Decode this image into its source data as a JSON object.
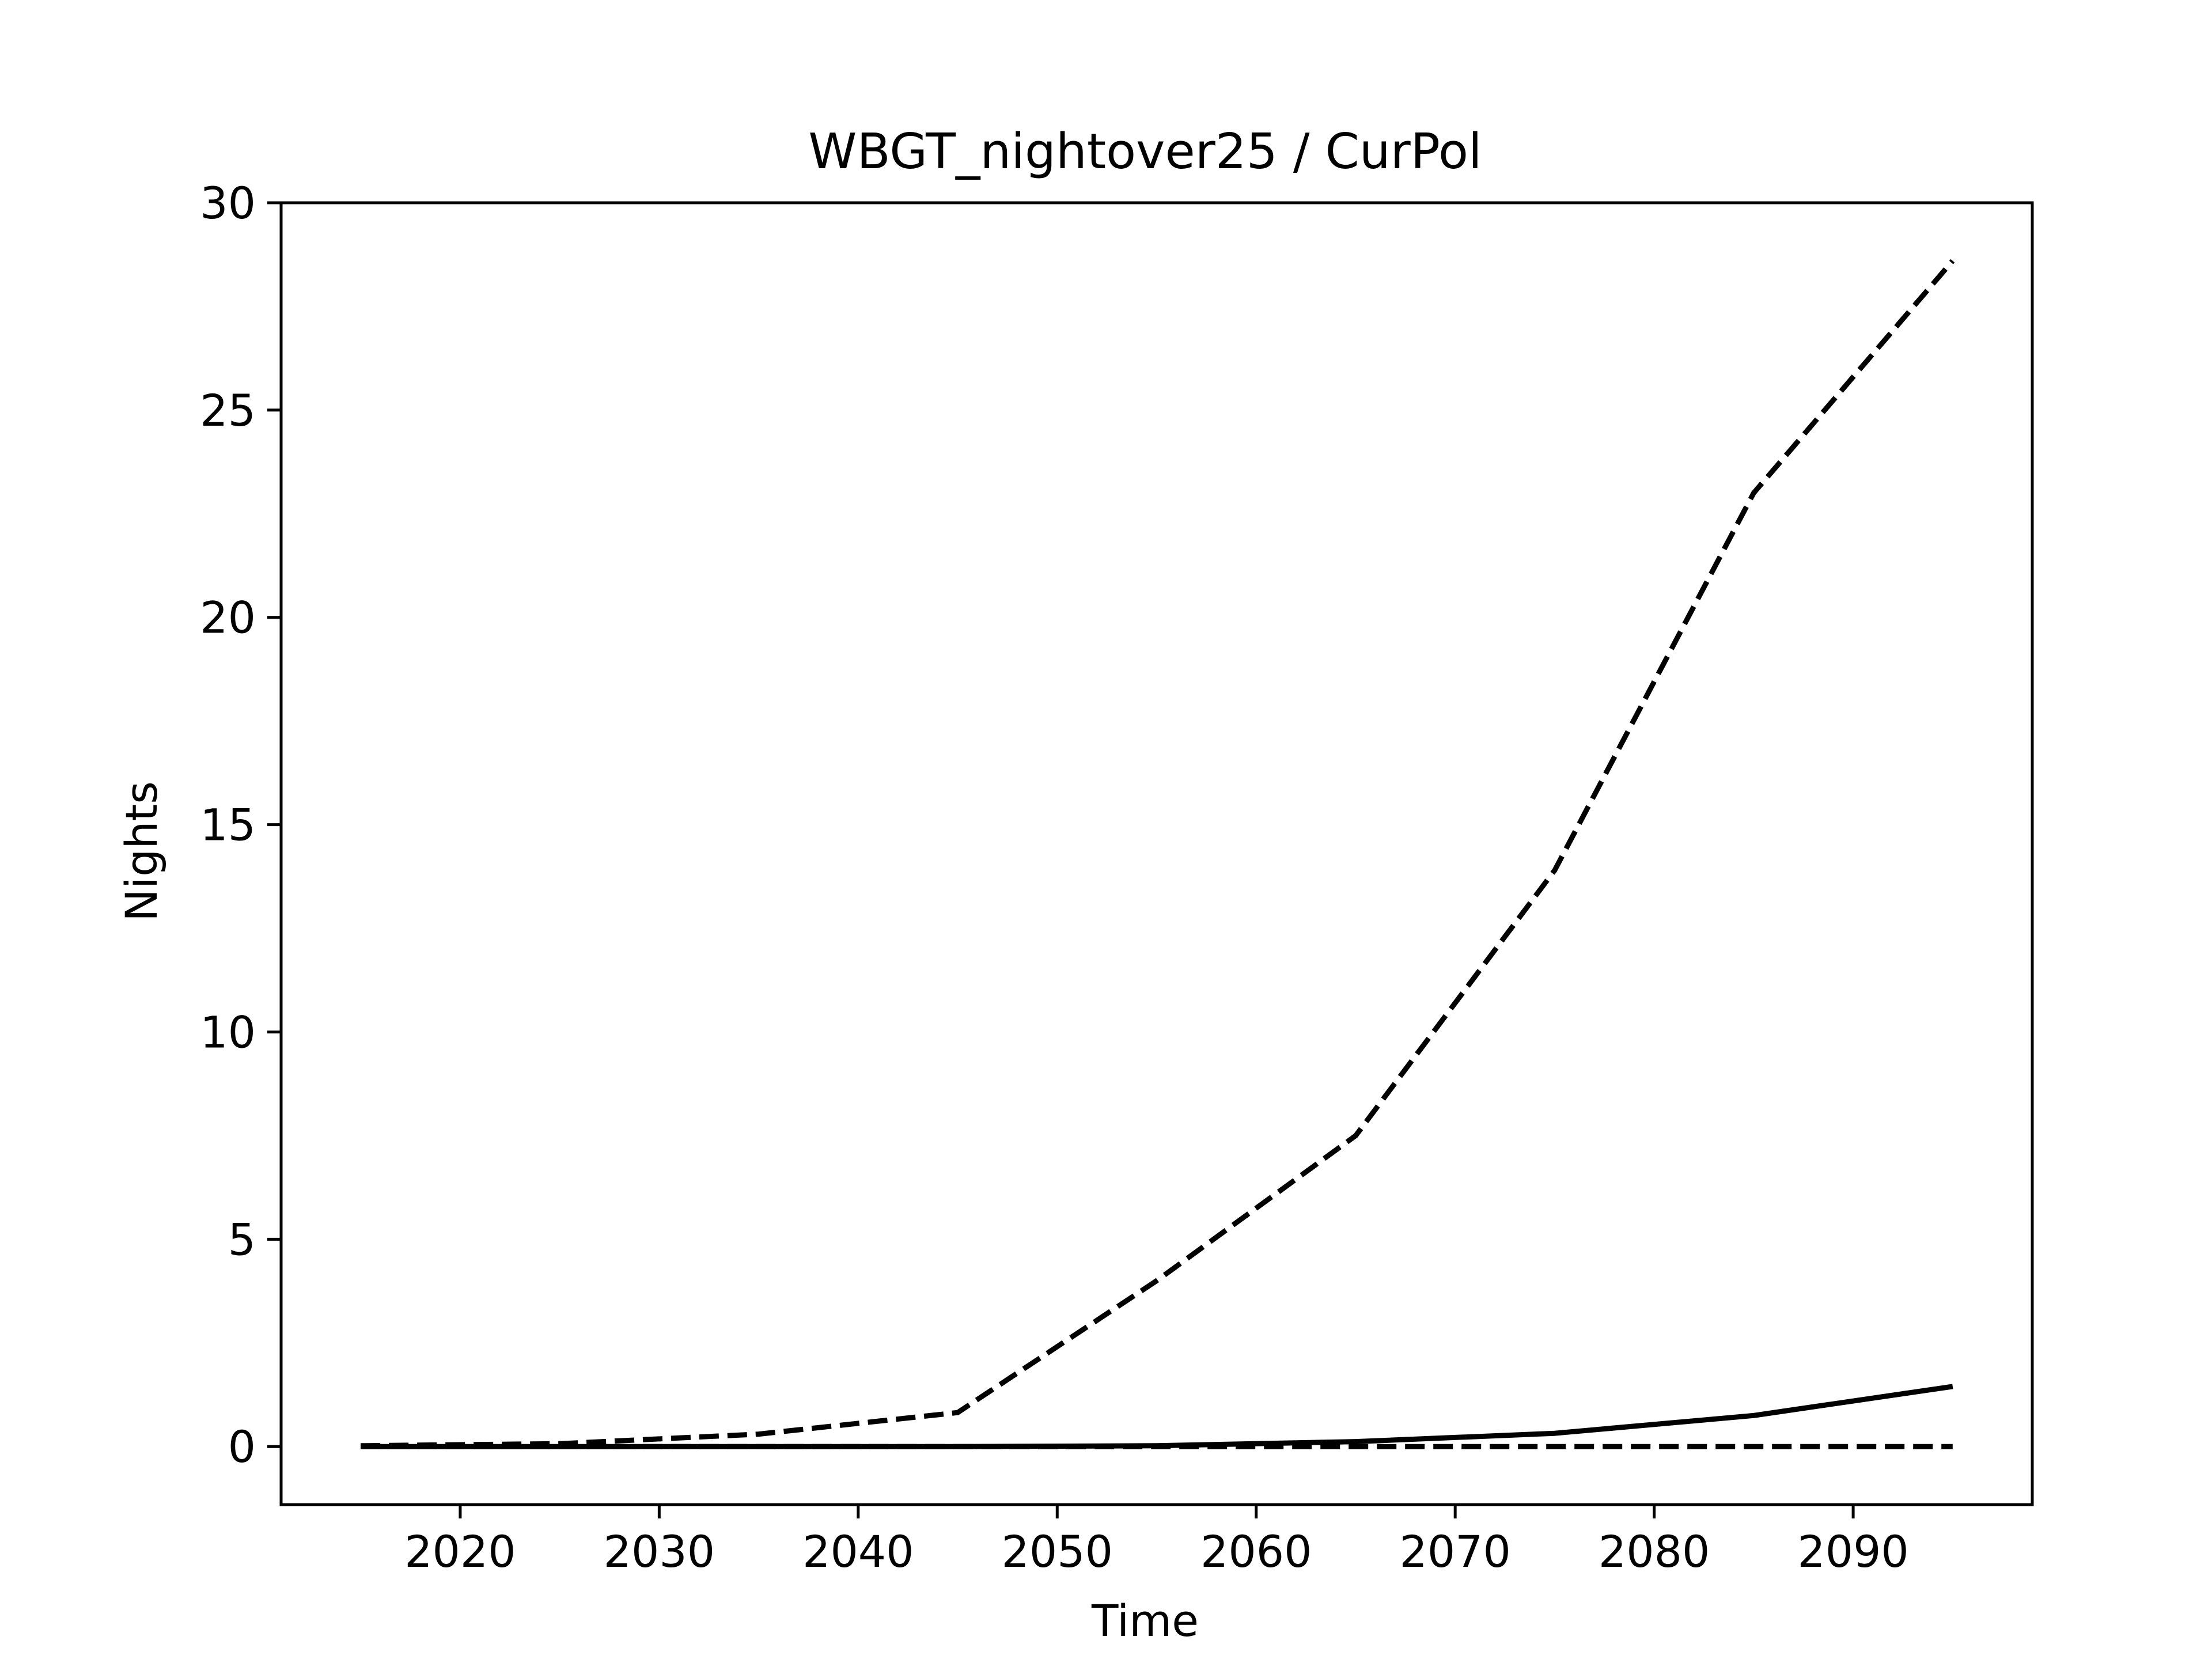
{
  "chart_data": {
    "type": "line",
    "title": "WBGT_nightover25 / CurPol",
    "xlabel": "Time",
    "ylabel": "Nights",
    "xlim": [
      2011,
      2099
    ],
    "ylim": [
      -1.4,
      30
    ],
    "xticks": [
      2020,
      2030,
      2040,
      2050,
      2060,
      2070,
      2080,
      2090
    ],
    "yticks": [
      0,
      5,
      10,
      15,
      20,
      25,
      30
    ],
    "grid": false,
    "x": [
      2015,
      2025,
      2035,
      2045,
      2055,
      2065,
      2075,
      2085,
      2095
    ],
    "series": [
      {
        "style": "solid",
        "color": "#000000",
        "values": [
          0.0,
          0.0,
          0.0,
          0.0,
          0.02,
          0.12,
          0.32,
          0.75,
          1.45
        ]
      },
      {
        "style": "dashed",
        "color": "#000000",
        "values": [
          0.02,
          0.07,
          0.3,
          0.82,
          4.0,
          7.5,
          13.9,
          23.0,
          28.6
        ]
      },
      {
        "style": "dashed",
        "color": "#000000",
        "values": [
          0.0,
          0.0,
          0.0,
          0.0,
          0.0,
          0.0,
          0.0,
          0.0,
          0.0
        ]
      }
    ]
  }
}
